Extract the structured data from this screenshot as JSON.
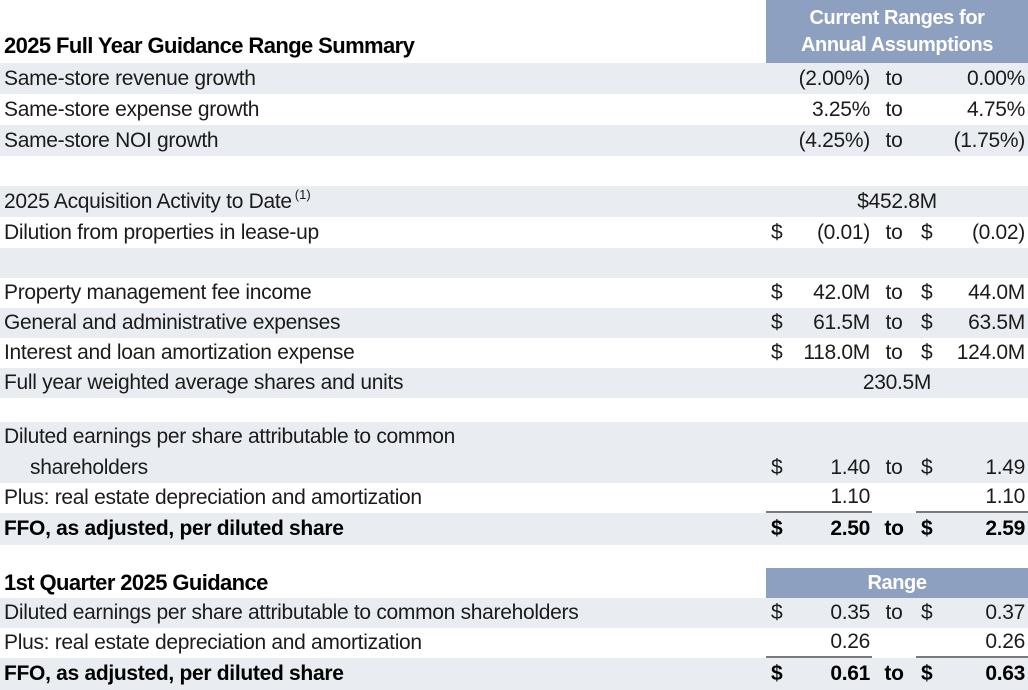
{
  "colors": {
    "header-bg": "#8DA0BF",
    "row-shaded": "#E9ECF1",
    "text": "#1b1b1b",
    "rule": "#7a7a7a",
    "page-bg": "#ffffff"
  },
  "annual": {
    "title": "2025 Full Year Guidance Range Summary",
    "header_line1": "Current Ranges for",
    "header_line2": "Annual Assumptions"
  },
  "quarter": {
    "title": "1st Quarter 2025 Guidance",
    "header": "Range"
  },
  "rows": {
    "ssrev": {
      "label": "Same-store revenue growth",
      "v1": "(2.00%)",
      "to": "to",
      "v2": "0.00%"
    },
    "ssexp": {
      "label": "Same-store expense growth",
      "v1": "3.25%",
      "to": "to",
      "v2": "4.75%"
    },
    "ssnoi": {
      "label": "Same-store NOI growth",
      "v1": "(4.25%)",
      "to": "to",
      "v2": "(1.75%)"
    },
    "acq": {
      "label": "2025 Acquisition Activity to Date",
      "sup": "(1)",
      "value": "$452.8M"
    },
    "dilution": {
      "label": "Dilution from properties in lease-up",
      "d1": "$",
      "v1": "(0.01)",
      "to": "to",
      "d2": "$",
      "v2": "(0.02)"
    },
    "pmfi": {
      "label": "Property management fee income",
      "d1": "$",
      "v1": "42.0M",
      "to": "to",
      "d2": "$",
      "v2": "44.0M"
    },
    "ga": {
      "label": "General and administrative expenses",
      "d1": "$",
      "v1": "61.5M",
      "to": "to",
      "d2": "$",
      "v2": "63.5M"
    },
    "interest": {
      "label": "Interest and loan amortization expense",
      "d1": "$",
      "v1": "118.0M",
      "to": "to",
      "d2": "$",
      "v2": "124.0M"
    },
    "shares": {
      "label": "Full year weighted average shares and units",
      "value": "230.5M"
    },
    "eps_fy": {
      "label_line1": "Diluted earnings per share attributable to common",
      "label_line2": "shareholders",
      "d1": "$",
      "v1": "1.40",
      "to": "to",
      "d2": "$",
      "v2": "1.49"
    },
    "dep_fy": {
      "label": "Plus: real estate depreciation and amortization",
      "v1": "1.10",
      "v2": "1.10"
    },
    "ffo_fy": {
      "label": "FFO, as adjusted, per diluted share",
      "d1": "$",
      "v1": "2.50",
      "to": "to",
      "d2": "$",
      "v2": "2.59"
    },
    "eps_q1": {
      "label": "Diluted earnings per share attributable to common shareholders",
      "d1": "$",
      "v1": "0.35",
      "to": "to",
      "d2": "$",
      "v2": "0.37"
    },
    "dep_q1": {
      "label": "Plus: real estate depreciation and amortization",
      "v1": "0.26",
      "v2": "0.26"
    },
    "ffo_q1": {
      "label": "FFO, as adjusted, per diluted share",
      "d1": "$",
      "v1": "0.61",
      "to": "to",
      "d2": "$",
      "v2": "0.63"
    }
  }
}
